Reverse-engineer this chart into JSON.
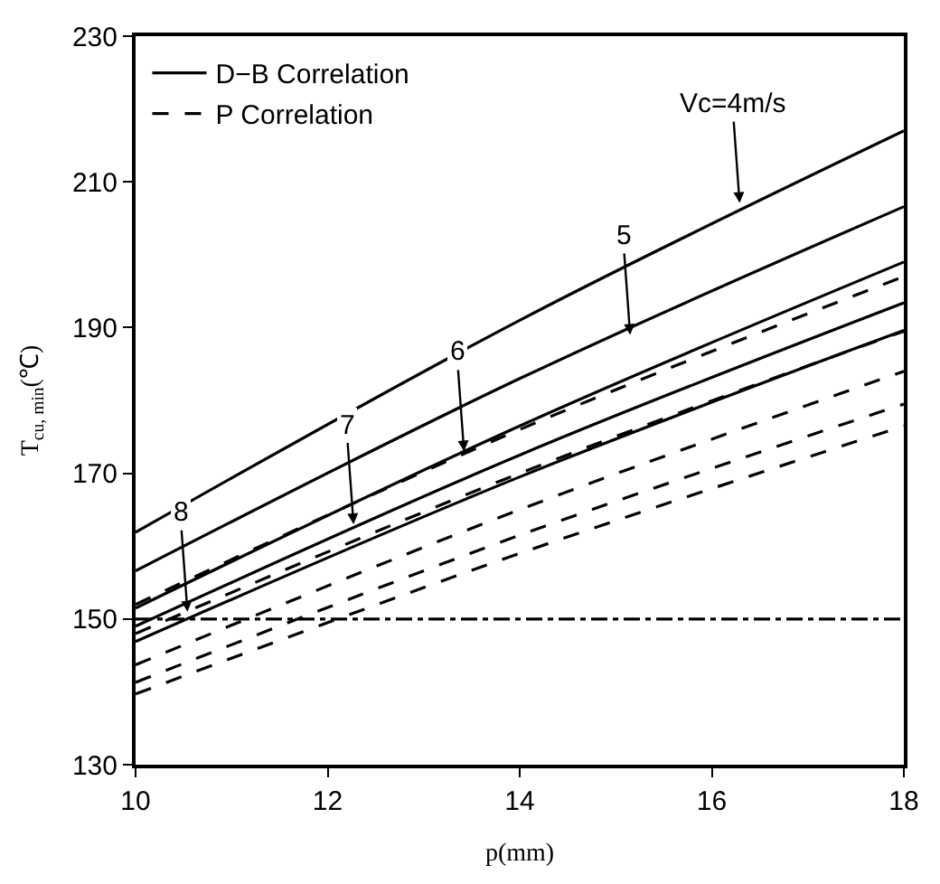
{
  "chart_data": {
    "type": "line",
    "xlabel": "p(mm)",
    "ylabel": "T$_{cu, min}$(℃)",
    "x": [
      10,
      14,
      18
    ],
    "series": [
      {
        "name": "D−B Correlation",
        "color": "#000000",
        "line_style": "solid",
        "values": [
          161.9,
          191,
          217
        ]
      },
      {
        "color": "#000000",
        "line_style": "solid",
        "values": [
          156.6,
          183,
          206.6
        ]
      },
      {
        "color": "#000000",
        "line_style": "solid",
        "values": [
          151.5,
          176.5,
          199
        ]
      },
      {
        "color": "#000000",
        "line_style": "solid",
        "values": [
          149,
          172.5,
          193.4
        ]
      },
      {
        "color": "#000000",
        "line_style": "solid",
        "values": [
          146.9,
          169.5,
          189.6
        ]
      },
      {
        "name": "P Correlation",
        "color": "#000000",
        "line_style": "dashed",
        "values": [
          152,
          176,
          197
        ]
      },
      {
        "color": "#000000",
        "line_style": "dashed",
        "values": [
          148,
          170,
          189.5
        ]
      },
      {
        "color": "#000000",
        "line_style": "dashed",
        "values": [
          143.7,
          165,
          184
        ]
      },
      {
        "color": "#000000",
        "line_style": "dashed",
        "values": [
          141.3,
          161.5,
          179.5
        ]
      },
      {
        "color": "#000000",
        "line_style": "dashed",
        "values": [
          139.7,
          159,
          176.5
        ]
      }
    ],
    "annotations": [
      {
        "text": "Vc=4m/s",
        "x": 16.29,
        "y": 207.1
      },
      {
        "text": "5",
        "x": 15.15,
        "y": 189
      },
      {
        "text": "6",
        "x": 13.42,
        "y": 173
      },
      {
        "text": "7",
        "x": 12.27,
        "y": 163
      },
      {
        "text": "8",
        "x": 10.54,
        "y": 151
      }
    ],
    "ref_lines": [
      {
        "axis": "y",
        "value": 150,
        "color": "#000000",
        "line_style": "dashed"
      }
    ],
    "xlim": [
      10,
      18
    ],
    "xticks": [
      10,
      12,
      14,
      16,
      18
    ],
    "ylim": [
      130,
      230
    ],
    "yticks": [
      130,
      150,
      170,
      190,
      210,
      230
    ],
    "legend": "top left",
    "marker": "none"
  }
}
